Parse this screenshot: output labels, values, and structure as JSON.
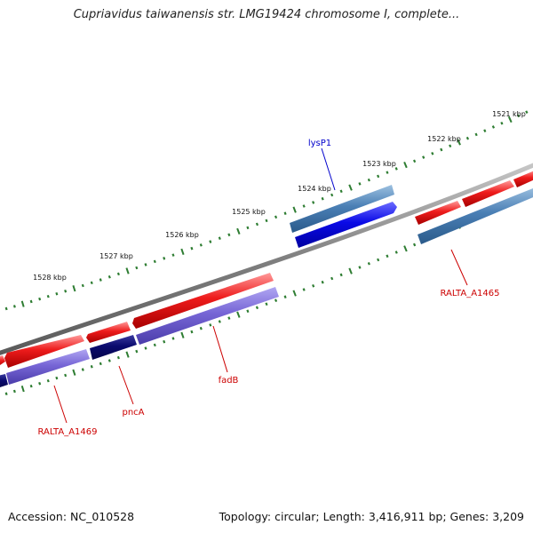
{
  "title": "Cupriavidus taiwanensis str. LMG19424 chromosome I, complete...",
  "ruler": {
    "ticks": [
      {
        "label": "1521 kbp"
      },
      {
        "label": "1522 kbp"
      },
      {
        "label": "1523 kbp"
      },
      {
        "label": "1524 kbp"
      },
      {
        "label": "1525 kbp"
      },
      {
        "label": "1526 kbp"
      },
      {
        "label": "1527 kbp"
      },
      {
        "label": "1528 kbp"
      }
    ],
    "tick_color": "#2e7d32"
  },
  "genes": [
    {
      "label": "lysP1",
      "color": "#0000cc"
    },
    {
      "label": "RALTA_A1465",
      "color": "#cc0000"
    },
    {
      "label": "fadB",
      "color": "#cc0000"
    },
    {
      "label": "pncA",
      "color": "#cc0000"
    },
    {
      "label": "RALTA_A1469",
      "color": "#cc0000"
    }
  ],
  "colors": {
    "forward_cds": "#ee1c1c",
    "reverse_cds": "#0a0ae6",
    "steel_blue": "#4a7fb5",
    "navy": "#0a0a6e",
    "purple": "#7766d6",
    "backbone": "#808080"
  },
  "footer": {
    "accession": "Accession: NC_010528",
    "summary": "Topology: circular; Length: 3,416,911 bp; Genes: 3,209"
  }
}
